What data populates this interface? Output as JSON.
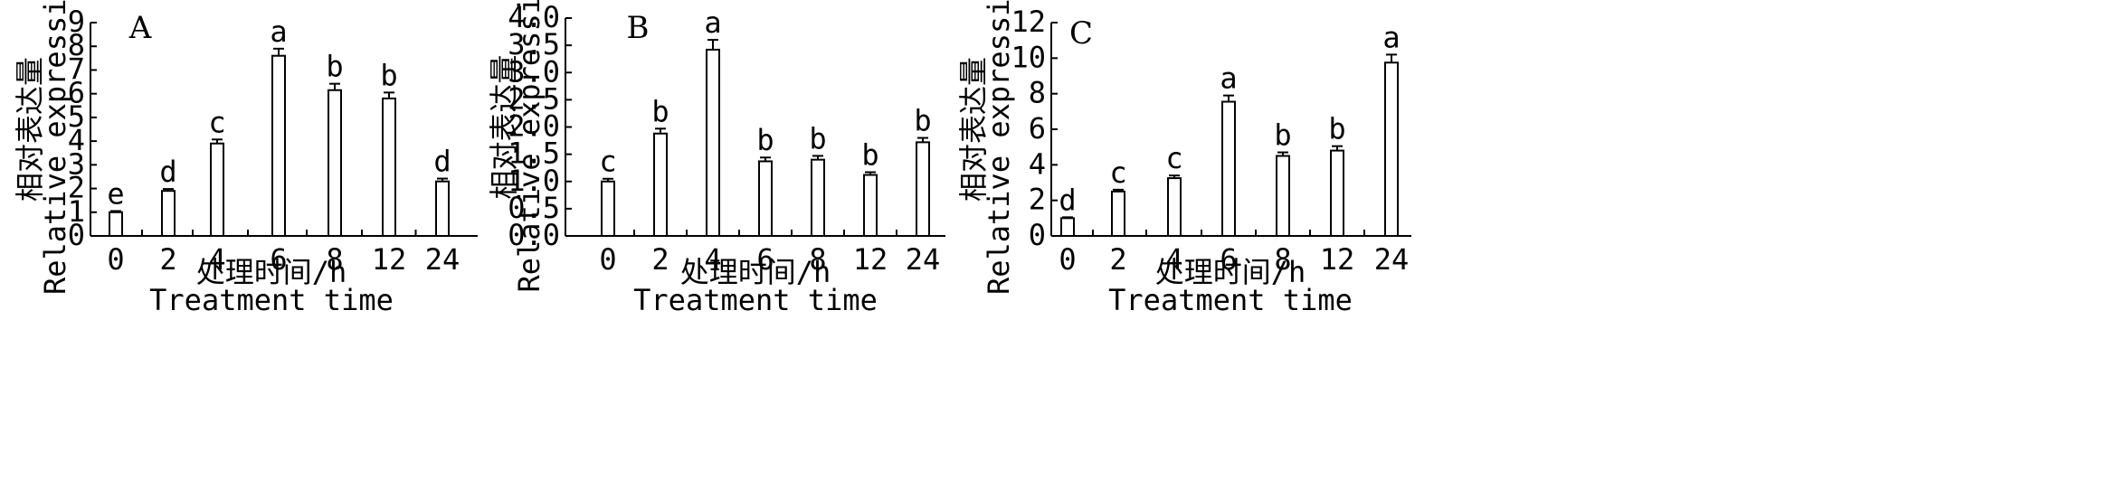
{
  "chart_data": [
    {
      "type": "bar",
      "panel_label": "A",
      "categories": [
        "0",
        "2",
        "4",
        "6",
        "8",
        "12",
        "24"
      ],
      "values": [
        1.0,
        1.9,
        3.9,
        7.6,
        6.15,
        5.8,
        2.3
      ],
      "errors": [
        0.05,
        0.08,
        0.17,
        0.3,
        0.27,
        0.25,
        0.12
      ],
      "significance": [
        "e",
        "d",
        "c",
        "a",
        "b",
        "b",
        "d"
      ],
      "ylim": [
        0,
        9
      ],
      "yticks": [
        "0",
        "1",
        "2",
        "3",
        "4",
        "5",
        "6",
        "7",
        "8",
        "9"
      ],
      "ylabel_zh": "相对表达量",
      "ylabel_en": "Relative expression",
      "xlabel_zh": "处理时间/h",
      "xlabel_en": "Treatment time"
    },
    {
      "type": "bar",
      "panel_label": "B",
      "categories": [
        "0",
        "2",
        "4",
        "6",
        "8",
        "12",
        "24"
      ],
      "values": [
        1.0,
        1.88,
        3.42,
        1.37,
        1.4,
        1.12,
        1.72
      ],
      "errors": [
        0.05,
        0.09,
        0.18,
        0.07,
        0.07,
        0.05,
        0.08
      ],
      "significance": [
        "c",
        "b",
        "a",
        "b",
        "b",
        "b",
        "b"
      ],
      "ylim": [
        0,
        4
      ],
      "yticks": [
        "0.0",
        "0.5",
        "1.0",
        "1.5",
        "2.0",
        "2.5",
        "3.0",
        "3.5",
        "4.0"
      ],
      "ylabel_zh": "相对表达量",
      "ylabel_en": "Relative expression",
      "xlabel_zh": "处理时间/h",
      "xlabel_en": "Treatment time"
    },
    {
      "type": "bar",
      "panel_label": "C",
      "categories": [
        "0",
        "2",
        "4",
        "6",
        "8",
        "12",
        "24"
      ],
      "values": [
        1.0,
        2.5,
        3.25,
        7.55,
        4.5,
        4.8,
        9.75
      ],
      "errors": [
        0.05,
        0.1,
        0.15,
        0.35,
        0.2,
        0.25,
        0.45
      ],
      "significance": [
        "d",
        "c",
        "c",
        "a",
        "b",
        "b",
        "a"
      ],
      "ylim": [
        0,
        12
      ],
      "yticks": [
        "0",
        "2",
        "4",
        "6",
        "8",
        "10",
        "12"
      ],
      "ylabel_zh": "相对表达量",
      "ylabel_en": "Relative expression",
      "xlabel_zh": "处理时间/h",
      "xlabel_en": "Treatment time"
    }
  ]
}
